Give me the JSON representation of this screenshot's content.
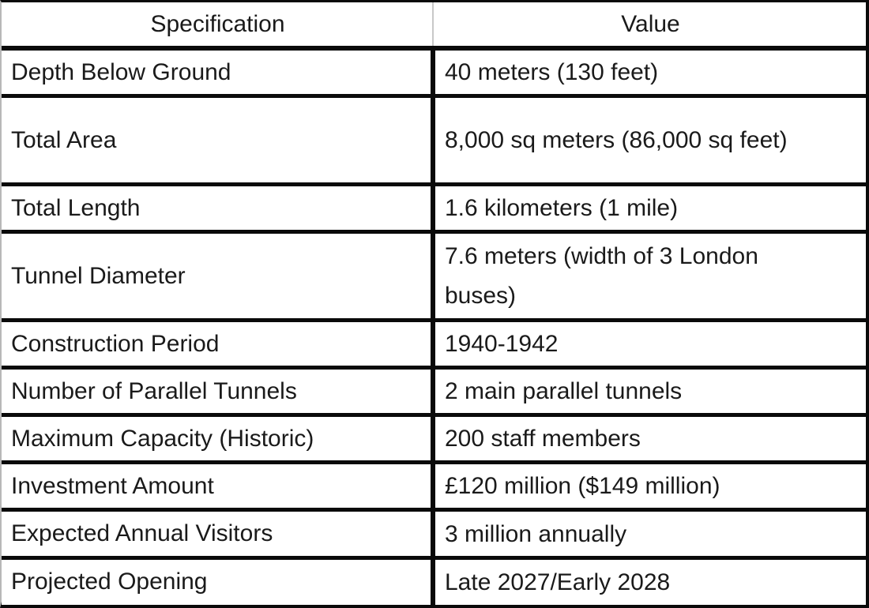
{
  "table": {
    "headers": [
      "Specification",
      "Value"
    ],
    "rows": [
      {
        "spec": "Depth Below Ground",
        "value": "40 meters (130 feet)"
      },
      {
        "spec": "Total Area",
        "value": "8,000 sq meters (86,000 sq feet)"
      },
      {
        "spec": "Total Length",
        "value": "1.6 kilometers (1 mile)"
      },
      {
        "spec": "Tunnel Diameter",
        "value": "7.6 meters (width of 3 London buses)"
      },
      {
        "spec": "Construction Period",
        "value": "1940-1942"
      },
      {
        "spec": "Number of Parallel Tunnels",
        "value": "2 main parallel tunnels"
      },
      {
        "spec": "Maximum Capacity (Historic)",
        "value": "200 staff members"
      },
      {
        "spec": "Investment Amount",
        "value": "£120 million ($149 million)"
      },
      {
        "spec": "Expected Annual Visitors",
        "value": "3 million annually"
      },
      {
        "spec": "Projected Opening",
        "value": "Late 2027/Early 2028"
      }
    ],
    "colors": {
      "border": "#0a0a0a",
      "text": "#1a1a1a",
      "header_divider": "#c8c8c8",
      "background": "#ffffff",
      "outer_left_border": "#b8b8b8"
    }
  }
}
